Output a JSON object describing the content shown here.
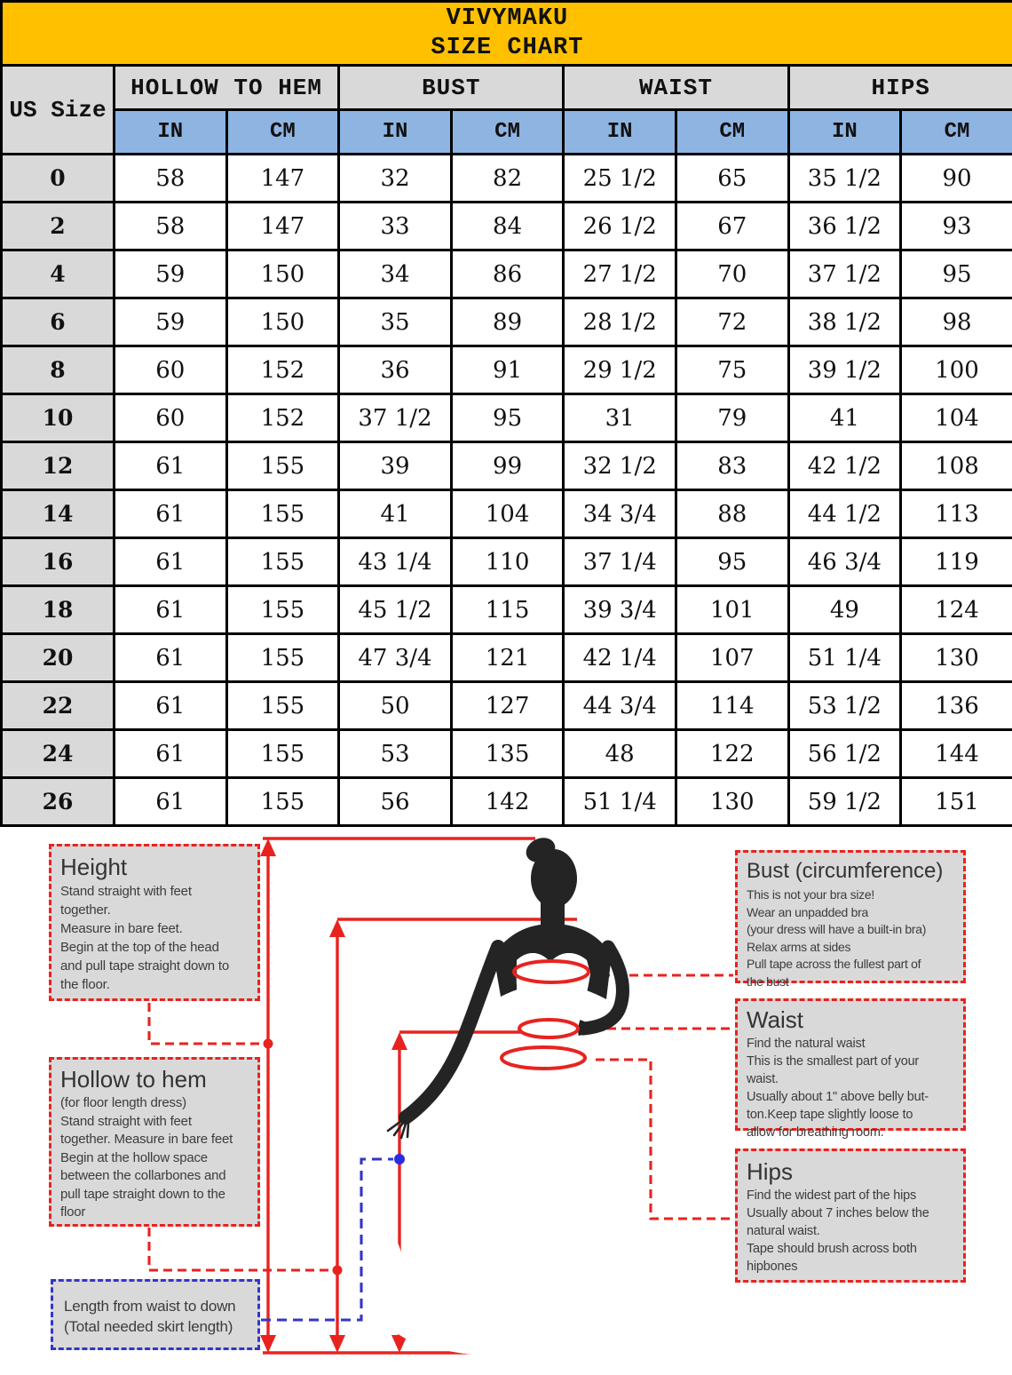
{
  "header": {
    "brand": "VIVYMAKU",
    "title": "SIZE CHART"
  },
  "table": {
    "corner_label": "US Size",
    "groups": [
      {
        "label": "HOLLOW TO HEM"
      },
      {
        "label": "BUST"
      },
      {
        "label": "WAIST"
      },
      {
        "label": "HIPS"
      }
    ],
    "unit_headers": [
      "IN",
      "CM",
      "IN",
      "CM",
      "IN",
      "CM",
      "IN",
      "CM"
    ],
    "rows": [
      {
        "size": "0",
        "cells": [
          "58",
          "147",
          "32",
          "82",
          "25 1/2",
          "65",
          "35 1/2",
          "90"
        ]
      },
      {
        "size": "2",
        "cells": [
          "58",
          "147",
          "33",
          "84",
          "26 1/2",
          "67",
          "36 1/2",
          "93"
        ]
      },
      {
        "size": "4",
        "cells": [
          "59",
          "150",
          "34",
          "86",
          "27 1/2",
          "70",
          "37 1/2",
          "95"
        ]
      },
      {
        "size": "6",
        "cells": [
          "59",
          "150",
          "35",
          "89",
          "28 1/2",
          "72",
          "38 1/2",
          "98"
        ]
      },
      {
        "size": "8",
        "cells": [
          "60",
          "152",
          "36",
          "91",
          "29 1/2",
          "75",
          "39 1/2",
          "100"
        ]
      },
      {
        "size": "10",
        "cells": [
          "60",
          "152",
          "37 1/2",
          "95",
          "31",
          "79",
          "41",
          "104"
        ]
      },
      {
        "size": "12",
        "cells": [
          "61",
          "155",
          "39",
          "99",
          "32 1/2",
          "83",
          "42 1/2",
          "108"
        ]
      },
      {
        "size": "14",
        "cells": [
          "61",
          "155",
          "41",
          "104",
          "34 3/4",
          "88",
          "44 1/2",
          "113"
        ]
      },
      {
        "size": "16",
        "cells": [
          "61",
          "155",
          "43 1/4",
          "110",
          "37 1/4",
          "95",
          "46 3/4",
          "119"
        ]
      },
      {
        "size": "18",
        "cells": [
          "61",
          "155",
          "45 1/2",
          "115",
          "39 3/4",
          "101",
          "49",
          "124"
        ]
      },
      {
        "size": "20",
        "cells": [
          "61",
          "155",
          "47 3/4",
          "121",
          "42 1/4",
          "107",
          "51 1/4",
          "130"
        ]
      },
      {
        "size": "22",
        "cells": [
          "61",
          "155",
          "50",
          "127",
          "44 3/4",
          "114",
          "53 1/2",
          "136"
        ]
      },
      {
        "size": "24",
        "cells": [
          "61",
          "155",
          "53",
          "135",
          "48",
          "122",
          "56 1/2",
          "144"
        ]
      },
      {
        "size": "26",
        "cells": [
          "61",
          "155",
          "56",
          "142",
          "51 1/4",
          "130",
          "59 1/2",
          "151"
        ]
      }
    ]
  },
  "guide": {
    "height": {
      "title": "Height",
      "lines": [
        "Stand straight with feet",
        "together.",
        "Measure in bare feet.",
        "Begin at the top of the head",
        "and pull tape straight down to",
        "the floor."
      ]
    },
    "hollow": {
      "title": "Hollow to hem",
      "lines": [
        "(for floor length dress)",
        "Stand straight with feet",
        "together. Measure in bare feet",
        "Begin at the hollow space",
        "between the collarbones and",
        "pull tape straight down to the",
        "floor"
      ]
    },
    "length": {
      "lines": [
        "Length from waist to down",
        "(Total needed skirt length)"
      ]
    },
    "bust": {
      "title": "Bust (circumference)",
      "lines": [
        "This is not your bra size!",
        "Wear an unpadded bra",
        "(your dress will have a built-in bra)",
        "Relax arms at sides",
        "Pull tape across the fullest part of",
        "the bust"
      ]
    },
    "waist": {
      "title": "Waist",
      "lines": [
        "Find the natural waist",
        "This is the smallest part of your",
        "waist.",
        "Usually about 1\" above belly but-",
        "ton.Keep tape slightly loose to",
        "allow for breathing room."
      ]
    },
    "hips": {
      "title": "Hips",
      "lines": [
        "Find the widest part of the hips",
        "Usually about 7 inches below the",
        "natural waist.",
        "Tape should brush across both",
        "hipbones"
      ]
    }
  },
  "colors": {
    "header_yellow": "#FFC000",
    "header_gray": "#D9D9D9",
    "unit_blue": "#8EB4E2",
    "line_red": "#e8231f",
    "line_blue": "#3335cb",
    "dress_navy": "#1d1d7c",
    "silhouette": "#242424"
  }
}
